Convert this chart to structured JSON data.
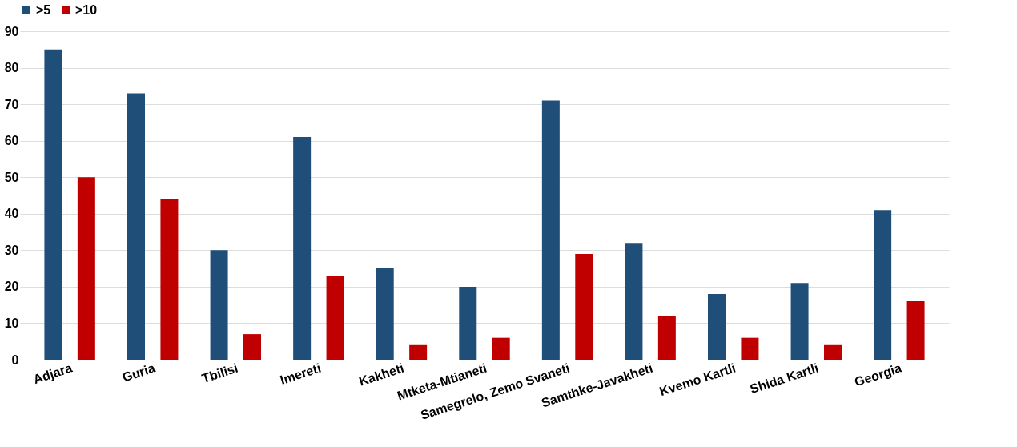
{
  "chart_data": {
    "type": "bar",
    "categories": [
      "Adjara",
      "Guria",
      "Tbilisi",
      "Imereti",
      "Kakheti",
      "Mtketa-Mtianeti",
      "Samegrelo, Zemo Svaneti",
      "Samthke-Javakheti",
      "Kvemo Kartli",
      "Shida Kartli",
      "Georgia"
    ],
    "series": [
      {
        "name": ">5",
        "color": "#1f4e79",
        "values": [
          85,
          73,
          30,
          61,
          25,
          20,
          71,
          32,
          18,
          21,
          41
        ]
      },
      {
        "name": ">10",
        "color": "#c00000",
        "values": [
          50,
          44,
          7,
          23,
          4,
          6,
          29,
          12,
          6,
          4,
          16
        ]
      }
    ],
    "ylim": [
      0,
      90
    ],
    "yticks": [
      0,
      10,
      20,
      30,
      40,
      50,
      60,
      70,
      80,
      90
    ],
    "grid": "y",
    "legend": "top"
  }
}
